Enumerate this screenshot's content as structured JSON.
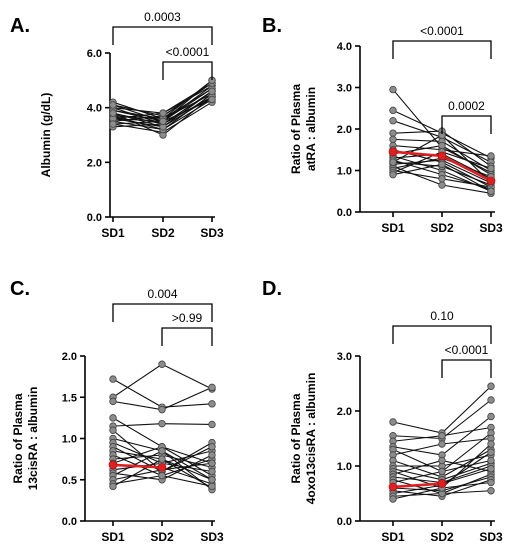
{
  "chart_data": [
    {
      "type": "line",
      "panel_label": "A.",
      "ylabel_lines": [
        "Albumin (g/dL)"
      ],
      "categories": [
        "SD1",
        "SD2",
        "SD3"
      ],
      "ylim": [
        0,
        6
      ],
      "yticks": [
        "0.0",
        "2.0",
        "4.0",
        "6.0"
      ],
      "ytick_values": [
        0,
        2,
        4,
        6
      ],
      "median": null,
      "brackets": [
        {
          "from": "SD1",
          "to": "SD3",
          "label": "0.0003",
          "level": 2
        },
        {
          "from": "SD2",
          "to": "SD3",
          "label": "<0.0001",
          "level": 1
        }
      ],
      "series": [
        {
          "values": [
            4.2,
            3.6,
            5.0
          ]
        },
        {
          "values": [
            4.1,
            3.7,
            4.9
          ]
        },
        {
          "values": [
            4.0,
            3.8,
            4.8
          ]
        },
        {
          "values": [
            3.9,
            3.5,
            4.7
          ]
        },
        {
          "values": [
            3.8,
            3.4,
            4.6
          ]
        },
        {
          "values": [
            3.7,
            3.6,
            4.5
          ]
        },
        {
          "values": [
            3.6,
            3.3,
            4.4
          ]
        },
        {
          "values": [
            3.5,
            3.2,
            4.3
          ]
        },
        {
          "values": [
            3.4,
            3.1,
            4.2
          ]
        },
        {
          "values": [
            3.8,
            3.0,
            4.4
          ]
        },
        {
          "values": [
            3.6,
            3.5,
            4.8
          ]
        },
        {
          "values": [
            3.5,
            3.7,
            4.9
          ]
        },
        {
          "values": [
            4.0,
            3.4,
            4.6
          ]
        },
        {
          "values": [
            3.7,
            3.2,
            4.5
          ]
        },
        {
          "values": [
            3.9,
            3.6,
            4.7
          ]
        },
        {
          "values": [
            3.3,
            3.4,
            4.4
          ]
        },
        {
          "values": [
            3.6,
            3.8,
            4.9
          ]
        },
        {
          "values": [
            3.4,
            3.5,
            4.3
          ]
        },
        {
          "values": [
            3.8,
            3.3,
            4.6
          ]
        },
        {
          "values": [
            4.1,
            3.5,
            5.0
          ]
        }
      ]
    },
    {
      "type": "line",
      "panel_label": "B.",
      "ylabel_lines": [
        "Ratio of Plasma",
        "atRA : albumin"
      ],
      "categories": [
        "SD1",
        "SD2",
        "SD3"
      ],
      "ylim": [
        0,
        4
      ],
      "yticks": [
        "0.0",
        "1.0",
        "2.0",
        "3.0",
        "4.0"
      ],
      "ytick_values": [
        0,
        1,
        2,
        3,
        4
      ],
      "median": [
        1.45,
        1.35,
        0.75
      ],
      "brackets": [
        {
          "from": "SD1",
          "to": "SD3",
          "label": "<0.0001",
          "level": 2
        },
        {
          "from": "SD2",
          "to": "SD3",
          "label": "0.0002",
          "level": 1
        }
      ],
      "series": [
        {
          "values": [
            2.95,
            1.55,
            0.95
          ]
        },
        {
          "values": [
            2.45,
            1.9,
            1.3
          ]
        },
        {
          "values": [
            2.2,
            1.8,
            1.2
          ]
        },
        {
          "values": [
            1.9,
            1.95,
            1.1
          ]
        },
        {
          "values": [
            1.75,
            1.7,
            1.0
          ]
        },
        {
          "values": [
            1.6,
            1.5,
            1.35
          ]
        },
        {
          "values": [
            1.5,
            1.2,
            0.6
          ]
        },
        {
          "values": [
            1.45,
            1.35,
            0.75
          ]
        },
        {
          "values": [
            1.4,
            1.6,
            0.9
          ]
        },
        {
          "values": [
            1.35,
            1.0,
            0.5
          ]
        },
        {
          "values": [
            1.3,
            1.4,
            0.8
          ]
        },
        {
          "values": [
            1.25,
            0.9,
            0.55
          ]
        },
        {
          "values": [
            1.2,
            1.1,
            0.65
          ]
        },
        {
          "values": [
            1.15,
            1.25,
            0.7
          ]
        },
        {
          "values": [
            1.1,
            0.65,
            0.45
          ]
        },
        {
          "values": [
            1.05,
            1.3,
            0.85
          ]
        },
        {
          "values": [
            1.0,
            0.8,
            0.6
          ]
        },
        {
          "values": [
            0.95,
            1.45,
            1.05
          ]
        },
        {
          "values": [
            0.9,
            1.15,
            0.5
          ]
        },
        {
          "values": [
            1.2,
            1.85,
            0.7
          ]
        }
      ]
    },
    {
      "type": "line",
      "panel_label": "C.",
      "ylabel_lines": [
        "Ratio of Plasma",
        "13cisRA : albumin"
      ],
      "categories": [
        "SD1",
        "SD2",
        "SD3"
      ],
      "ylim": [
        0,
        2
      ],
      "yticks": [
        "0.0",
        "0.5",
        "1.0",
        "1.5",
        "2.0"
      ],
      "ytick_values": [
        0,
        0.5,
        1,
        1.5,
        2
      ],
      "median": [
        0.68,
        0.65,
        null
      ],
      "brackets": [
        {
          "from": "SD1",
          "to": "SD3",
          "label": "0.004",
          "level": 2
        },
        {
          "from": "SD2",
          "to": "SD3",
          "label": ">0.99",
          "level": 1
        }
      ],
      "series": [
        {
          "values": [
            1.72,
            1.38,
            1.42
          ]
        },
        {
          "values": [
            1.5,
            1.9,
            1.6
          ]
        },
        {
          "values": [
            1.45,
            1.35,
            1.62
          ]
        },
        {
          "values": [
            1.25,
            0.9,
            0.7
          ]
        },
        {
          "values": [
            1.15,
            1.18,
            1.17
          ]
        },
        {
          "values": [
            1.1,
            0.6,
            0.95
          ]
        },
        {
          "values": [
            1.0,
            0.85,
            0.5
          ]
        },
        {
          "values": [
            0.95,
            0.7,
            0.85
          ]
        },
        {
          "values": [
            0.9,
            0.6,
            0.9
          ]
        },
        {
          "values": [
            0.85,
            0.75,
            0.4
          ]
        },
        {
          "values": [
            0.8,
            0.55,
            0.75
          ]
        },
        {
          "values": [
            0.75,
            0.8,
            0.65
          ]
        },
        {
          "values": [
            0.7,
            0.9,
            0.55
          ]
        },
        {
          "values": [
            0.68,
            0.65,
            0.45
          ]
        },
        {
          "values": [
            0.62,
            0.7,
            0.6
          ]
        },
        {
          "values": [
            0.58,
            0.5,
            0.8
          ]
        },
        {
          "values": [
            0.55,
            0.85,
            0.38
          ]
        },
        {
          "values": [
            0.5,
            0.62,
            0.7
          ]
        },
        {
          "values": [
            0.45,
            0.55,
            0.42
          ]
        },
        {
          "values": [
            0.42,
            0.75,
            0.5
          ]
        }
      ]
    },
    {
      "type": "line",
      "panel_label": "D.",
      "ylabel_lines": [
        "Ratio of Plasma",
        "4oxo13cisRA : albumin"
      ],
      "categories": [
        "SD1",
        "SD2",
        "SD3"
      ],
      "ylim": [
        0,
        3
      ],
      "yticks": [
        "0.0",
        "1.0",
        "2.0",
        "3.0"
      ],
      "ytick_values": [
        0,
        1,
        2,
        3
      ],
      "median": [
        0.62,
        0.68,
        null
      ],
      "brackets": [
        {
          "from": "SD1",
          "to": "SD3",
          "label": "0.10",
          "level": 2
        },
        {
          "from": "SD2",
          "to": "SD3",
          "label": "<0.0001",
          "level": 1
        }
      ],
      "series": [
        {
          "values": [
            1.8,
            1.6,
            2.45
          ]
        },
        {
          "values": [
            1.55,
            1.5,
            2.2
          ]
        },
        {
          "values": [
            1.45,
            1.55,
            1.7
          ]
        },
        {
          "values": [
            1.35,
            1.2,
            1.9
          ]
        },
        {
          "values": [
            1.3,
            0.9,
            1.6
          ]
        },
        {
          "values": [
            1.2,
            1.4,
            1.5
          ]
        },
        {
          "values": [
            1.1,
            0.8,
            1.3
          ]
        },
        {
          "values": [
            1.0,
            1.0,
            1.2
          ]
        },
        {
          "values": [
            0.95,
            0.75,
            1.05
          ]
        },
        {
          "values": [
            0.9,
            0.6,
            1.4
          ]
        },
        {
          "values": [
            0.85,
            1.1,
            0.9
          ]
        },
        {
          "values": [
            0.8,
            0.7,
            1.0
          ]
        },
        {
          "values": [
            0.75,
            0.5,
            0.85
          ]
        },
        {
          "values": [
            0.7,
            0.9,
            1.1
          ]
        },
        {
          "values": [
            0.62,
            0.68,
            0.95
          ]
        },
        {
          "values": [
            0.6,
            0.55,
            0.8
          ]
        },
        {
          "values": [
            0.55,
            0.45,
            0.75
          ]
        },
        {
          "values": [
            0.5,
            0.65,
            1.25
          ]
        },
        {
          "values": [
            0.45,
            0.5,
            0.55
          ]
        },
        {
          "values": [
            0.4,
            0.6,
            0.7
          ]
        }
      ]
    }
  ]
}
